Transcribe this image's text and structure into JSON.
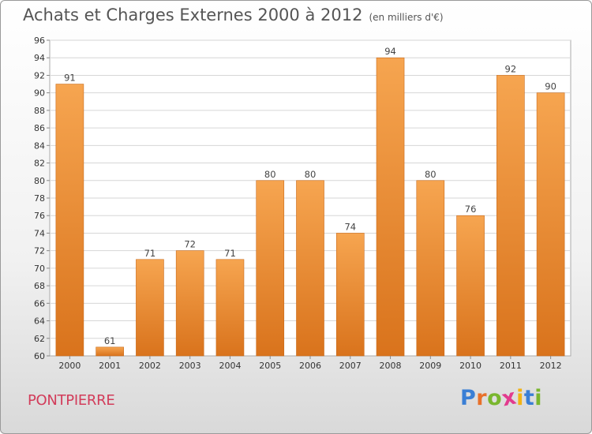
{
  "header": {
    "title": "Achats et Charges Externes 2000 à 2012",
    "subtitle": "(en milliers d'€)"
  },
  "footer": {
    "commune": "PONTPIERRE",
    "logo_letters": [
      "P",
      "r",
      "o",
      "x",
      "i",
      "t",
      "i"
    ]
  },
  "colors": {
    "bar_top": "#f6a550",
    "bar_bottom": "#d9731c",
    "commune_text": "#d23c5a",
    "logo": [
      "#3a7fd5",
      "#e8702a",
      "#79b62e",
      "#e23b8e",
      "#f2b315",
      "#3a7fd5",
      "#79b62e"
    ]
  },
  "chart_data": {
    "type": "bar",
    "title": "Achats et Charges Externes 2000 à 2012",
    "subtitle": "(en milliers d'€)",
    "categories": [
      "2000",
      "2001",
      "2002",
      "2003",
      "2004",
      "2005",
      "2006",
      "2007",
      "2008",
      "2009",
      "2010",
      "2011",
      "2012"
    ],
    "values": [
      91,
      61,
      71,
      72,
      71,
      80,
      80,
      74,
      94,
      80,
      76,
      92,
      90
    ],
    "ylim": [
      60,
      96
    ],
    "yticks": [
      60,
      62,
      64,
      66,
      68,
      70,
      72,
      74,
      76,
      78,
      80,
      82,
      84,
      86,
      88,
      90,
      92,
      94,
      96
    ],
    "grid": true,
    "legend": "none"
  }
}
